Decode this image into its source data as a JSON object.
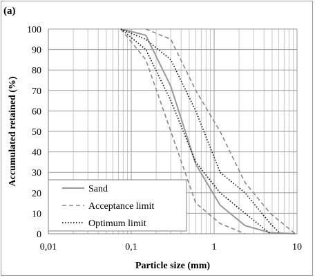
{
  "panel_label": "(a)",
  "colors": {
    "sand": "#999999",
    "acceptance": "#888888",
    "optimum": "#111111",
    "grid_major": "#9a9a9a",
    "grid_minor": "#c8c8c8"
  },
  "chart_data": {
    "type": "line",
    "title": "",
    "xlabel": "Particle size (mm)",
    "ylabel": "Accumulated retained (%)",
    "x_scale": "log",
    "xlim": [
      0.01,
      10
    ],
    "ylim": [
      0,
      100
    ],
    "x_ticks": [
      0.01,
      0.1,
      1,
      10
    ],
    "x_tick_labels": [
      "0,01",
      "0,1",
      "1",
      "10"
    ],
    "y_ticks": [
      0,
      10,
      20,
      30,
      40,
      50,
      60,
      70,
      80,
      90,
      100
    ],
    "y_tick_labels": [
      "0",
      "10",
      "20",
      "30",
      "40",
      "50",
      "60",
      "70",
      "80",
      "90",
      "100"
    ],
    "grid": true,
    "legend_position": "bottom-left",
    "series": [
      {
        "name": "Sand",
        "style": "solid",
        "x": [
          0.075,
          0.15,
          0.3,
          0.6,
          1.18,
          2.36,
          4.75,
          9.5
        ],
        "y": [
          100,
          97,
          72,
          34,
          14,
          4,
          0.5,
          0
        ]
      },
      {
        "name": "Acceptance limit",
        "style": "dashed",
        "x": [
          0.075,
          0.15,
          0.3,
          0.6,
          1.18,
          2.36
        ],
        "y": [
          100,
          85,
          50,
          15,
          5,
          0
        ]
      },
      {
        "name": "",
        "style": "dashed",
        "x": [
          0.15,
          0.3,
          0.6,
          1.18,
          2.36,
          4.75,
          9.5
        ],
        "y": [
          100,
          95,
          70,
          50,
          25,
          10,
          0
        ]
      },
      {
        "name": "Optimum limit",
        "style": "dotted",
        "x": [
          0.075,
          0.15,
          0.3,
          0.6,
          1.18,
          2.36,
          4.75
        ],
        "y": [
          100,
          90,
          65,
          35,
          20,
          10,
          0
        ]
      },
      {
        "name": "",
        "style": "dotted",
        "x": [
          0.075,
          0.15,
          0.3,
          0.6,
          1.18,
          2.36,
          4.75,
          6.3
        ],
        "y": [
          100,
          95,
          85,
          60,
          30,
          20,
          5,
          0
        ]
      }
    ]
  }
}
